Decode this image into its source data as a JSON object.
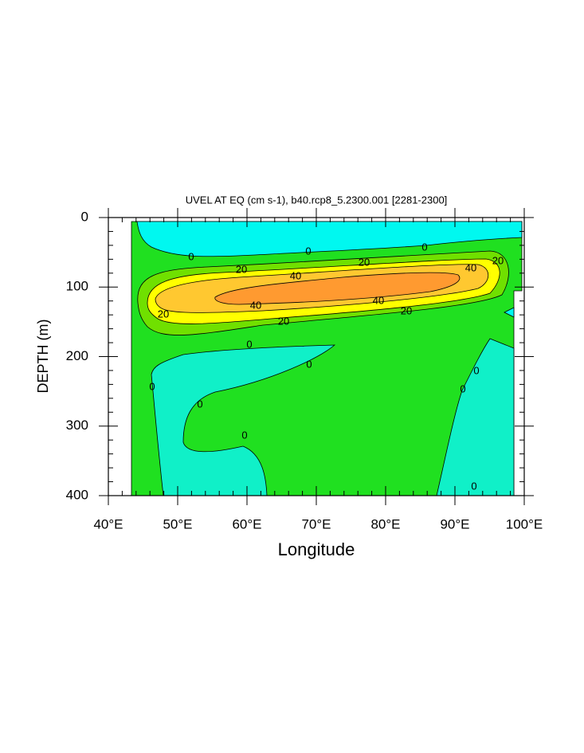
{
  "chart_data": {
    "type": "contour",
    "title": "UVEL AT EQ (cm s-1), b40.rcp8_5.2300.001 [2281-2300]",
    "x_label": "Longitude",
    "y_label": "DEPTH (m)",
    "xlim": [
      40,
      100
    ],
    "ylim": [
      0,
      400
    ],
    "y_inverted": true,
    "xticks": [
      {
        "value": 40,
        "label": "40°E"
      },
      {
        "value": 50,
        "label": "50°E"
      },
      {
        "value": 60,
        "label": "60°E"
      },
      {
        "value": 70,
        "label": "70°E"
      },
      {
        "value": 80,
        "label": "80°E"
      },
      {
        "value": 90,
        "label": "90°E"
      },
      {
        "value": 100,
        "label": "100°E"
      }
    ],
    "yticks": [
      0,
      100,
      200,
      300,
      400
    ],
    "levels": [
      0,
      20,
      40
    ],
    "fill_colors": [
      "#20e020",
      "#00f8f0",
      "#10f0c8",
      "#70e000",
      "#ffff00",
      "#ffc830",
      "#ff9a30"
    ]
  }
}
